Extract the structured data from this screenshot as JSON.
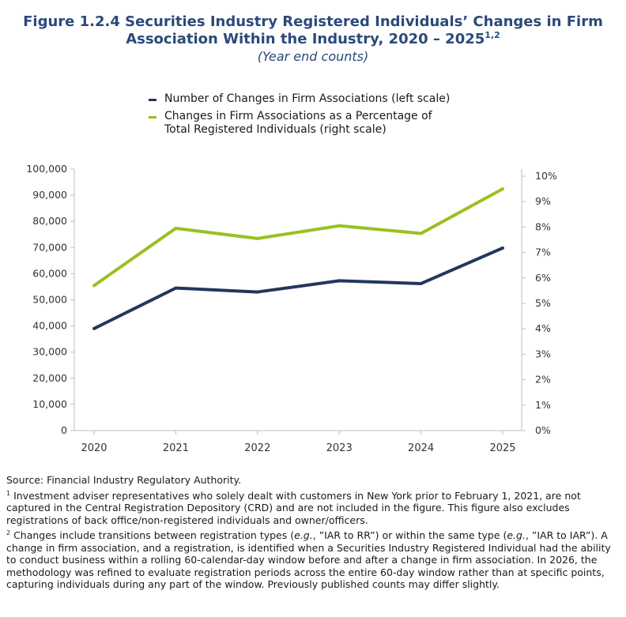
{
  "title_line1": "Figure 1.2.4 Securities Industry Registered Individuals’ Changes in Firm",
  "title_line2": "Association Within the Industry, 2020 – 2025",
  "title_sup": "1,2",
  "subtitle": "(Year end counts)",
  "colors": {
    "title": "#2b4a7a",
    "series_navy": "#23375e",
    "series_green": "#9ac020"
  },
  "chart_data": {
    "type": "line",
    "x": [
      "2020",
      "2021",
      "2022",
      "2023",
      "2024",
      "2025"
    ],
    "series": [
      {
        "name": "Number of Changes in Firm Associations (left scale)",
        "axis": "left",
        "color": "#23375e",
        "values": [
          39000,
          54500,
          53000,
          57300,
          56200,
          69800
        ]
      },
      {
        "name": "Changes in Firm Associations as a Percentage of Total Registered Individuals (right scale)",
        "axis": "right",
        "color": "#9ac020",
        "values": [
          5.7,
          7.95,
          7.55,
          8.05,
          7.75,
          9.5
        ]
      }
    ],
    "left_axis": {
      "ylim": [
        0,
        100000
      ],
      "ticks": [
        "0",
        "10,000",
        "20,000",
        "30,000",
        "40,000",
        "50,000",
        "60,000",
        "70,000",
        "80,000",
        "90,000",
        "100,000"
      ]
    },
    "right_axis": {
      "ylim": [
        0,
        10
      ],
      "ticks": [
        "0%",
        "1%",
        "2%",
        "3%",
        "4%",
        "5%",
        "6%",
        "7%",
        "8%",
        "9%",
        "10%"
      ]
    },
    "grid": false,
    "legend_position": "top"
  },
  "legend": {
    "item1": "Number of Changes in Firm Associations (left scale)",
    "item2_line1": "Changes in Firm Associations as a Percentage of",
    "item2_line2": "Total Registered Individuals (right scale)"
  },
  "notes": {
    "source": "Source: Financial Industry Regulatory Authority.",
    "note1_mark": "1",
    "note1": " Investment adviser representatives who solely dealt with customers in New York prior to February 1, 2021, are not captured in the Central Registration Depository (CRD) and are not included in the figure. This figure also excludes registrations of back office/non-registered individuals and owner/officers.",
    "note2_mark": "2",
    "note2_a": " Changes include transitions between registration types (",
    "note2_eg1": "e.g.",
    "note2_b": ", ”IAR to RR”) or within the same type (",
    "note2_eg2": "e.g.",
    "note2_c": ", ”IAR to IAR”). A change in firm association, and a registration, is identified when a Securities Industry Registered Individual had the ability to conduct business within a rolling 60-calendar-day window before and after a change in firm association. In 2026, the methodology was refined to evaluate registration periods across the entire 60-day window rather than at specific points, capturing individuals during any part of the window. Previously published counts may differ slightly."
  }
}
